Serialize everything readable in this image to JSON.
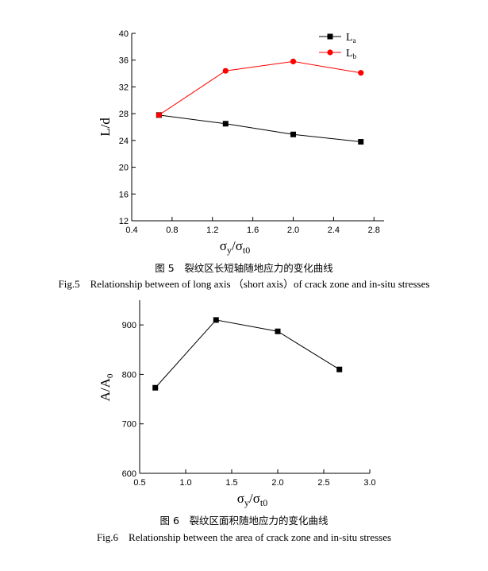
{
  "figure5": {
    "caption_cn": "图 5　裂纹区长短轴随地应力的变化曲线",
    "caption_en": "Fig.5　Relationship between of long axis （short axis）of crack zone and in-situ stresses",
    "xlabel": {
      "main": "σ",
      "sub1": "y",
      "slash": "/σ",
      "sub2": "t0"
    },
    "ylabel": "L/d",
    "colors": {
      "La": "#000000",
      "Lb": "#ff0000"
    }
  },
  "figure6": {
    "caption_cn": "图 6　裂纹区面积随地应力的变化曲线",
    "caption_en": "Fig.6　Relationship between the area of crack zone and in-situ stresses",
    "xlabel": {
      "main": "σ",
      "sub1": "y",
      "slash": "/σ",
      "sub2": "t0"
    },
    "ylabel": {
      "main": "A/A",
      "sub": "0"
    }
  },
  "chart_data": [
    {
      "type": "line",
      "x": [
        0.67,
        1.33,
        2.0,
        2.67
      ],
      "series": [
        {
          "name": "L",
          "name_sub": "a",
          "marker": "square",
          "color": "#000000",
          "values": [
            27.8,
            26.5,
            24.9,
            23.8
          ]
        },
        {
          "name": "L",
          "name_sub": "b",
          "marker": "circle",
          "color": "#ff0000",
          "values": [
            27.8,
            34.4,
            35.8,
            34.1
          ]
        }
      ],
      "xlim": [
        0.4,
        2.9
      ],
      "ylim": [
        12,
        40
      ],
      "xticks": [
        "0.4",
        "0.8",
        "1.2",
        "1.6",
        "2.0",
        "2.4",
        "2.8"
      ],
      "yticks": [
        "12",
        "16",
        "20",
        "24",
        "28",
        "32",
        "36",
        "40"
      ],
      "legend": "top-right",
      "grid": false
    },
    {
      "type": "line",
      "x": [
        0.67,
        1.33,
        2.0,
        2.67
      ],
      "series": [
        {
          "marker": "square",
          "color": "#000000",
          "values": [
            773,
            910,
            887,
            810
          ]
        }
      ],
      "xlim": [
        0.5,
        3.0
      ],
      "ylim": [
        600,
        950
      ],
      "xticks": [
        "0.5",
        "1.0",
        "1.5",
        "2.0",
        "2.5",
        "3.0"
      ],
      "yticks": [
        "600",
        "700",
        "800",
        "900"
      ],
      "legend": "none",
      "grid": false
    }
  ]
}
